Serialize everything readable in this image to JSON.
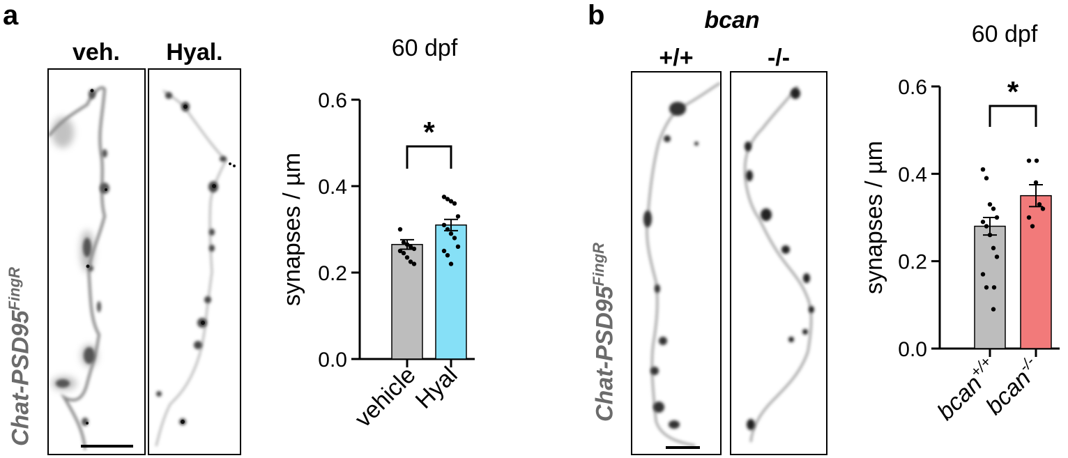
{
  "panel_a": {
    "letter": "a",
    "reporter_label": "Chat-PSD95",
    "reporter_sup": "FingR",
    "image_labels": [
      "veh.",
      "Hyal."
    ],
    "chart_title": "60 dpf",
    "significance": "*"
  },
  "panel_b": {
    "letter": "b",
    "gene": "bcan",
    "reporter_label": "Chat-PSD95",
    "reporter_sup": "FingR",
    "image_labels": [
      "+/+",
      "-/-"
    ],
    "chart_title": "60 dpf",
    "significance": "*"
  },
  "colors": {
    "control_bar": "#bdbdbd",
    "hyal_bar": "#86e0f7",
    "mutant_bar": "#f27a7a",
    "reporter_label": "#6b6b6b"
  },
  "chart_data": [
    {
      "type": "bar",
      "title": "60 dpf",
      "categories": [
        "vehicle",
        "Hyal"
      ],
      "values": [
        0.265,
        0.31
      ],
      "sem": [
        0.011,
        0.013
      ],
      "points": [
        [
          0.3,
          0.27,
          0.265,
          0.26,
          0.255,
          0.25,
          0.245,
          0.235,
          0.225,
          0.22
        ],
        [
          0.375,
          0.37,
          0.365,
          0.36,
          0.33,
          0.31,
          0.3,
          0.29,
          0.28,
          0.26,
          0.25,
          0.24,
          0.22
        ]
      ],
      "ylabel": "synapses / µm",
      "ylim": [
        0.0,
        0.6
      ],
      "yticks": [
        "0.0",
        "0.2",
        "0.4",
        "0.6"
      ],
      "significance": "*"
    },
    {
      "type": "bar",
      "title": "60 dpf",
      "categories": [
        {
          "base": "bcan",
          "sup": "+/+"
        },
        {
          "base": "bcan",
          "sup": "-/-"
        }
      ],
      "values": [
        0.28,
        0.35
      ],
      "sem": [
        0.02,
        0.025
      ],
      "points": [
        [
          0.41,
          0.39,
          0.33,
          0.32,
          0.3,
          0.29,
          0.28,
          0.26,
          0.23,
          0.21,
          0.17,
          0.14,
          0.14,
          0.09
        ],
        [
          0.43,
          0.43,
          0.38,
          0.33,
          0.32,
          0.3,
          0.28
        ]
      ],
      "ylabel": "synapses / µm",
      "ylim": [
        0.0,
        0.6
      ],
      "yticks": [
        "0.0",
        "0.2",
        "0.4",
        "0.6"
      ],
      "significance": "*"
    }
  ]
}
